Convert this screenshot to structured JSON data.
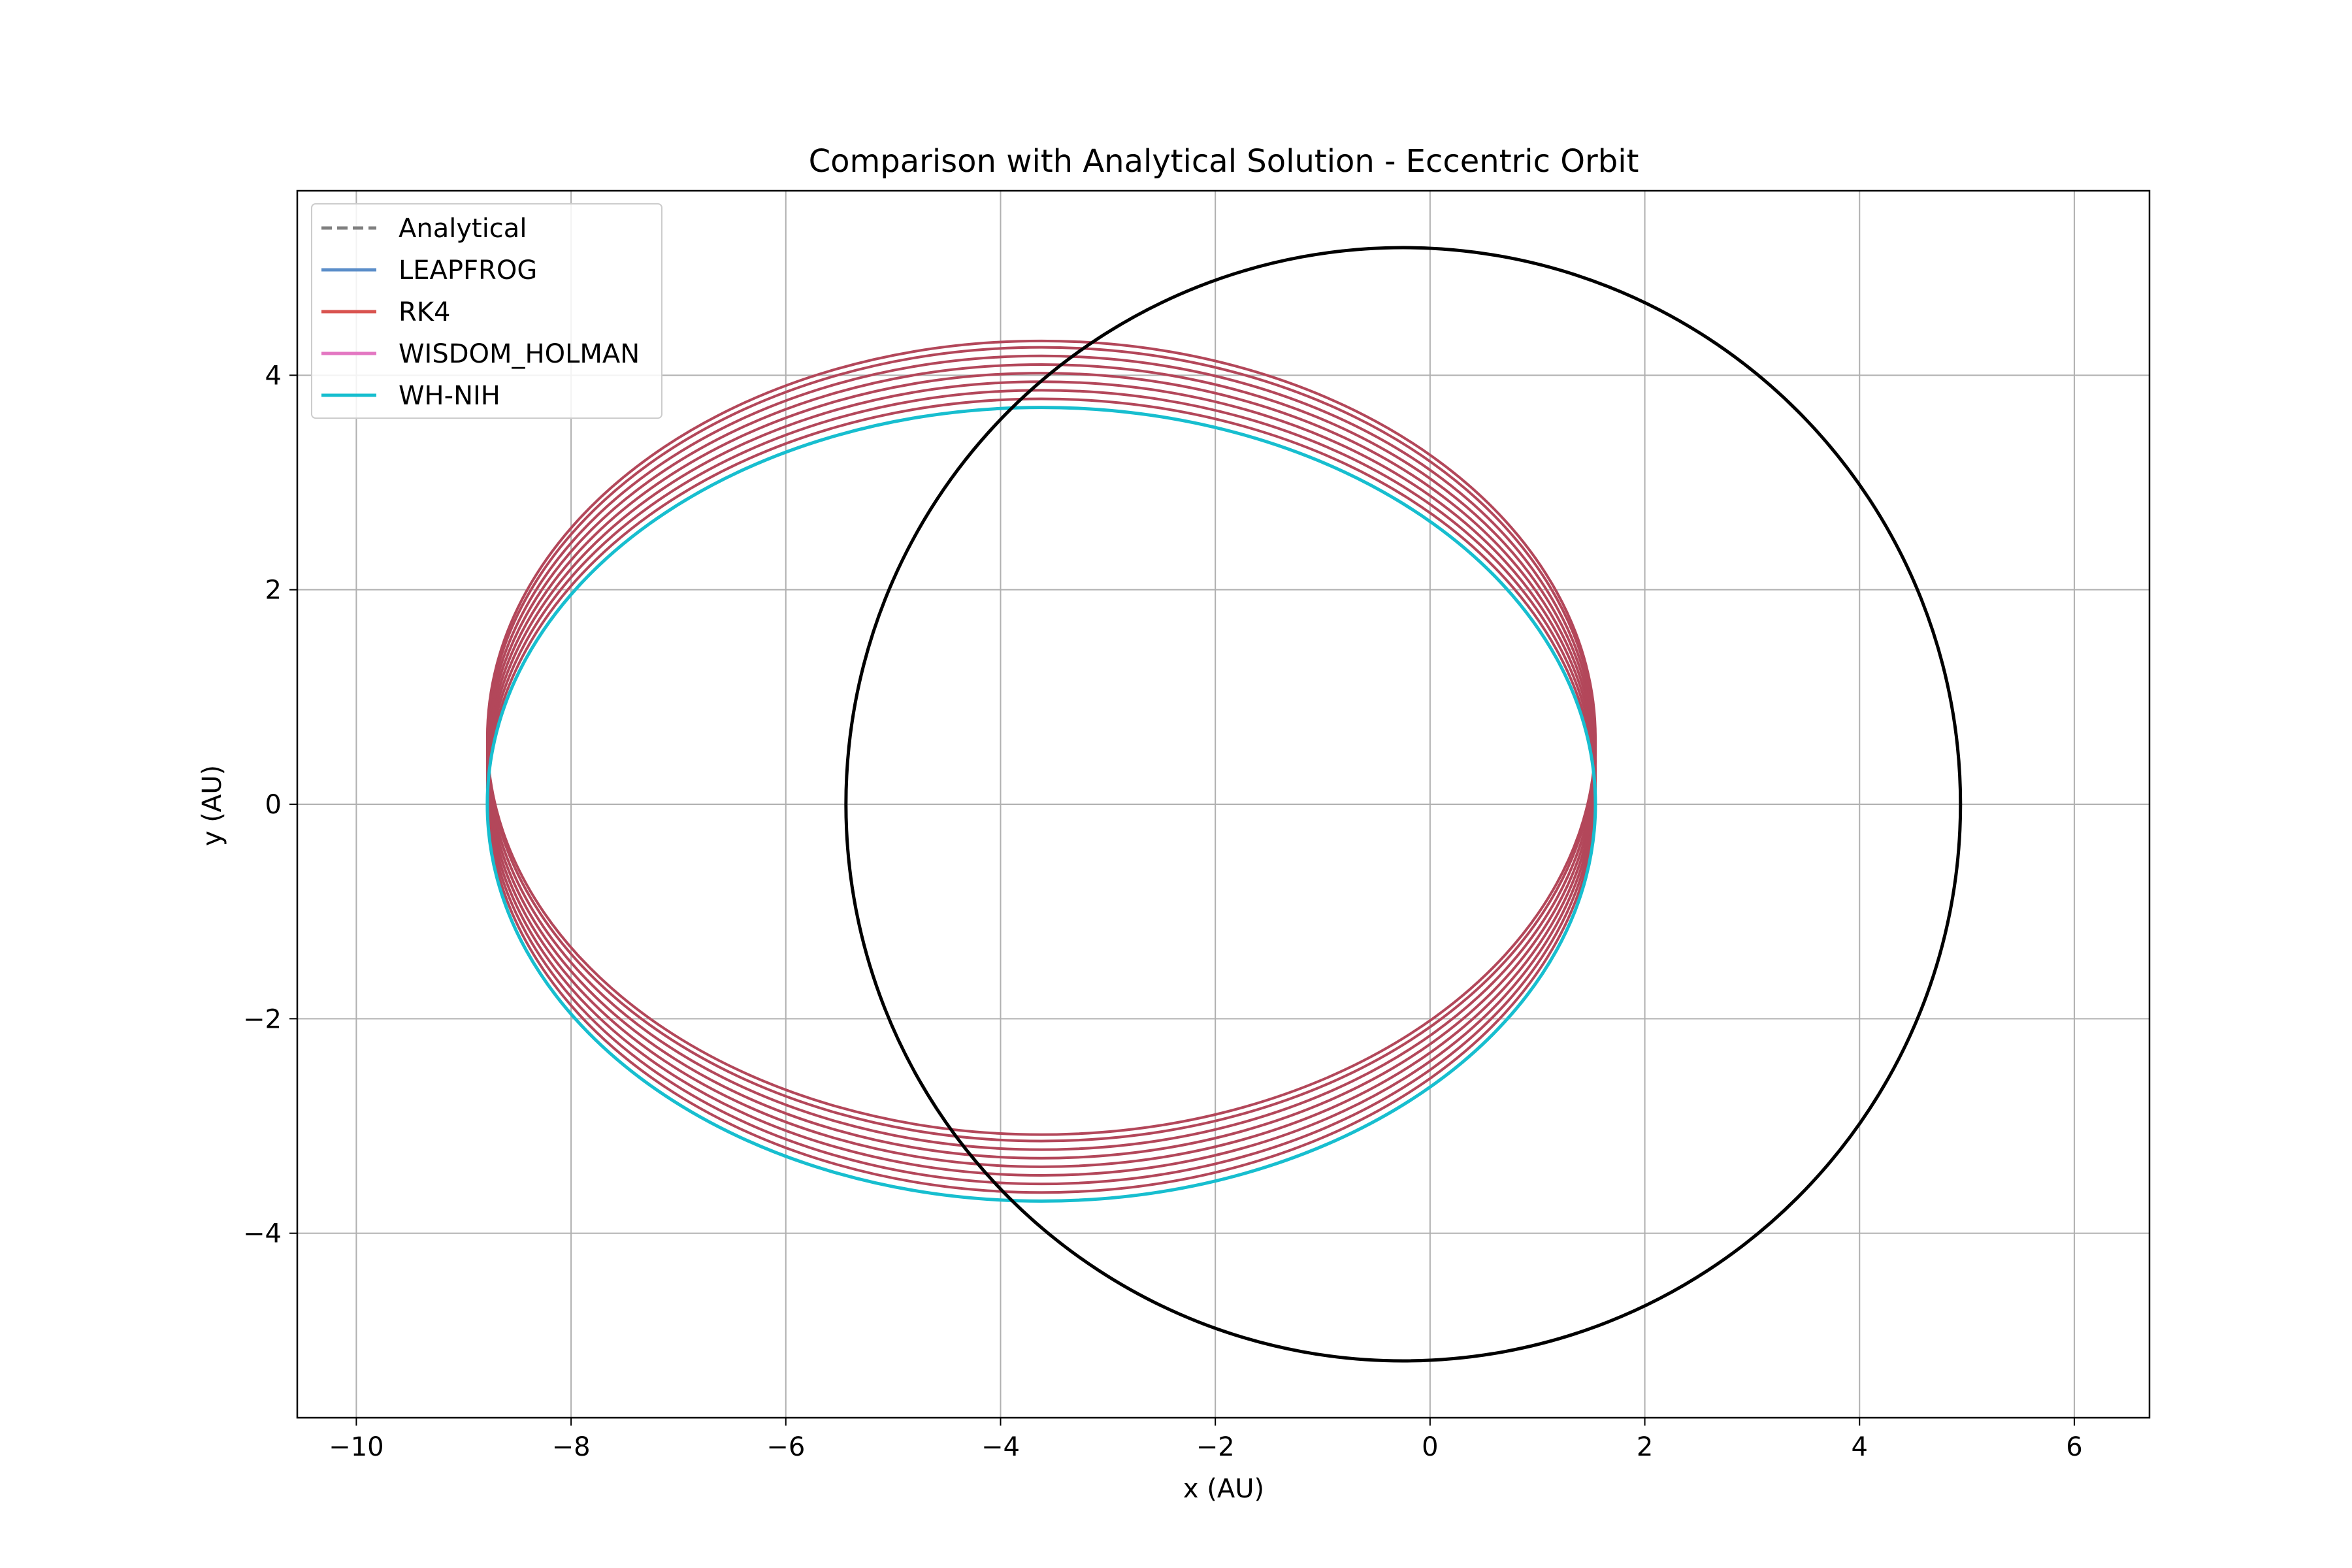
{
  "chart_data": {
    "type": "line",
    "title": "Comparison with Analytical Solution - Eccentric Orbit",
    "xlabel": "x (AU)",
    "ylabel": "y (AU)",
    "xlim": [
      -10.55,
      6.7
    ],
    "ylim": [
      -5.72,
      5.72
    ],
    "x_ticks": [
      -10,
      -8,
      -6,
      -4,
      -2,
      0,
      2,
      4,
      6
    ],
    "x_tick_labels": [
      "−10",
      "−8",
      "−6",
      "−4",
      "−2",
      "0",
      "2",
      "4",
      "6"
    ],
    "y_ticks": [
      -4,
      -2,
      0,
      2,
      4
    ],
    "y_tick_labels": [
      "−4",
      "−2",
      "0",
      "2",
      "4"
    ],
    "grid": true,
    "legend_position": "top-left",
    "series": [
      {
        "name": "Analytical",
        "color": "#7f7f7f",
        "style": "dashed",
        "description": "ellipse",
        "center_x": -3.62,
        "center_y": 0.0,
        "semi_axis_x": 5.16,
        "semi_axis_y": 3.7
      },
      {
        "name": "LEAPFROG",
        "color": "#5b8ec9",
        "style": "solid",
        "center_x": -3.62,
        "center_y": 0.0,
        "semi_axis_x": 5.16,
        "semi_axis_y": 3.7
      },
      {
        "name": "RK4",
        "color": "#d9534f",
        "plot_color": "#b3475a",
        "style": "solid",
        "orbits": [
          {
            "center_x": -3.62,
            "center_y": 0.0,
            "semi_axis_x": 5.16,
            "semi_axis_y": 3.7
          },
          {
            "center_x": -3.62,
            "center_y": 0.08,
            "semi_axis_x": 5.16,
            "semi_axis_y": 3.7
          },
          {
            "center_x": -3.62,
            "center_y": 0.16,
            "semi_axis_x": 5.16,
            "semi_axis_y": 3.7
          },
          {
            "center_x": -3.62,
            "center_y": 0.24,
            "semi_axis_x": 5.16,
            "semi_axis_y": 3.7
          },
          {
            "center_x": -3.62,
            "center_y": 0.32,
            "semi_axis_x": 5.16,
            "semi_axis_y": 3.7
          },
          {
            "center_x": -3.62,
            "center_y": 0.4,
            "semi_axis_x": 5.16,
            "semi_axis_y": 3.7
          },
          {
            "center_x": -3.62,
            "center_y": 0.48,
            "semi_axis_x": 5.16,
            "semi_axis_y": 3.7
          },
          {
            "center_x": -3.62,
            "center_y": 0.56,
            "semi_axis_x": 5.16,
            "semi_axis_y": 3.7
          },
          {
            "center_x": -3.62,
            "center_y": 0.62,
            "semi_axis_x": 5.16,
            "semi_axis_y": 3.7
          }
        ]
      },
      {
        "name": "WISDOM_HOLMAN",
        "color": "#e377c2",
        "style": "solid",
        "center_x": -3.62,
        "center_y": 0.0,
        "semi_axis_x": 5.16,
        "semi_axis_y": 3.7
      },
      {
        "name": "WH-NIH",
        "color": "#17becf",
        "style": "solid",
        "center_x": -3.62,
        "center_y": 0.0,
        "semi_axis_x": 5.16,
        "semi_axis_y": 3.7
      },
      {
        "name": "",
        "color": "#000000",
        "style": "solid",
        "description": "unlabeled circle",
        "center_x": -0.25,
        "center_y": 0.0,
        "semi_axis_x": 5.19,
        "semi_axis_y": 5.19
      }
    ]
  }
}
